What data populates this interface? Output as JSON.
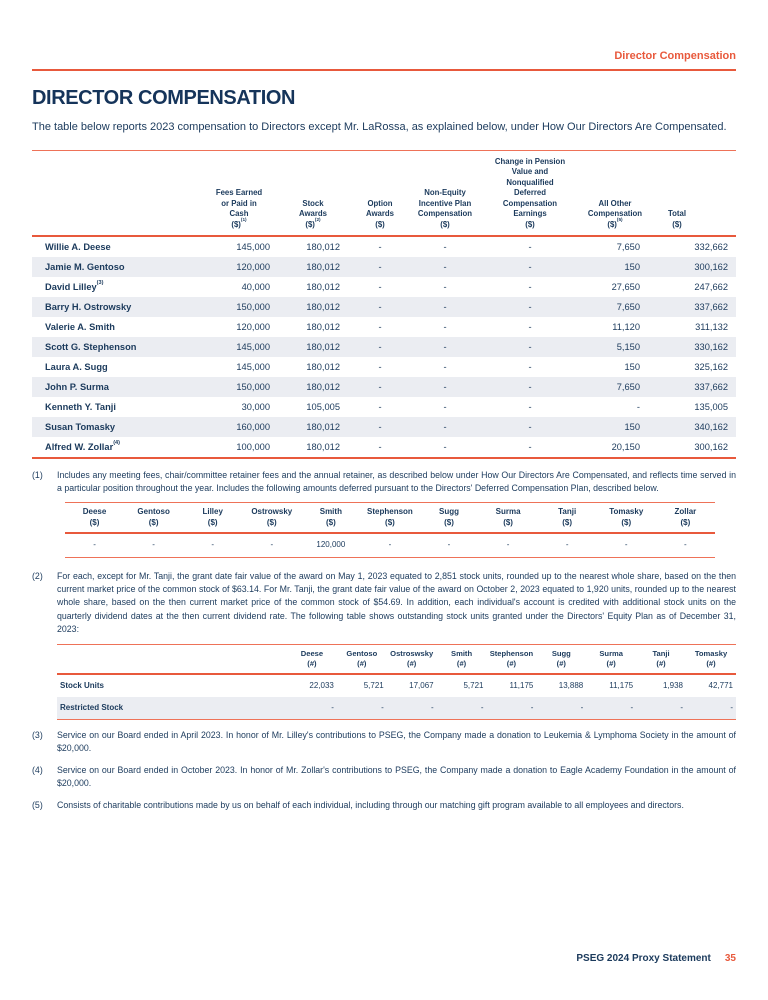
{
  "meta": {
    "header_label": "Director Compensation",
    "title": "DIRECTOR COMPENSATION",
    "intro": "The table below reports 2023 compensation to Directors except Mr. LaRossa, as explained below, under How Our Directors Are Compensated.",
    "footer_text": "PSEG 2024 Proxy Statement",
    "footer_page": "35"
  },
  "colors": {
    "accent_orange": "#e8593c",
    "navy": "#1b3a5c",
    "row_shade": "#ebedf2"
  },
  "comp_table": {
    "columns": [
      {
        "lines": [
          "Fees Earned",
          "or Paid in",
          "Cash"
        ],
        "unit": "($)",
        "sup": "(1)"
      },
      {
        "lines": [
          "Stock",
          "Awards"
        ],
        "unit": "($)",
        "sup": "(2)"
      },
      {
        "lines": [
          "Option",
          "Awards"
        ],
        "unit": "($)",
        "sup": ""
      },
      {
        "lines": [
          "Non-Equity",
          "Incentive Plan",
          "Compensation"
        ],
        "unit": "($)",
        "sup": ""
      },
      {
        "lines": [
          "Change in Pension",
          "Value and",
          "Nonqualified",
          "Deferred",
          "Compensation",
          "Earnings"
        ],
        "unit": "($)",
        "sup": ""
      },
      {
        "lines": [
          "All Other",
          "Compensation"
        ],
        "unit": "($)",
        "sup": "(5)"
      },
      {
        "lines": [
          "Total"
        ],
        "unit": "($)",
        "sup": ""
      }
    ],
    "rows": [
      {
        "name": "Willie A. Deese",
        "sup": "",
        "values": [
          "145,000",
          "180,012",
          "-",
          "-",
          "-",
          "7,650",
          "332,662"
        ]
      },
      {
        "name": "Jamie M. Gentoso",
        "sup": "",
        "values": [
          "120,000",
          "180,012",
          "-",
          "-",
          "-",
          "150",
          "300,162"
        ]
      },
      {
        "name": "David Lilley",
        "sup": "(3)",
        "values": [
          "40,000",
          "180,012",
          "-",
          "-",
          "-",
          "27,650",
          "247,662"
        ]
      },
      {
        "name": "Barry H. Ostrowsky",
        "sup": "",
        "values": [
          "150,000",
          "180,012",
          "-",
          "-",
          "-",
          "7,650",
          "337,662"
        ]
      },
      {
        "name": "Valerie A. Smith",
        "sup": "",
        "values": [
          "120,000",
          "180,012",
          "-",
          "-",
          "-",
          "11,120",
          "311,132"
        ]
      },
      {
        "name": "Scott G. Stephenson",
        "sup": "",
        "values": [
          "145,000",
          "180,012",
          "-",
          "-",
          "-",
          "5,150",
          "330,162"
        ]
      },
      {
        "name": "Laura A. Sugg",
        "sup": "",
        "values": [
          "145,000",
          "180,012",
          "-",
          "-",
          "-",
          "150",
          "325,162"
        ]
      },
      {
        "name": "John P. Surma",
        "sup": "",
        "values": [
          "150,000",
          "180,012",
          "-",
          "-",
          "-",
          "7,650",
          "337,662"
        ]
      },
      {
        "name": "Kenneth Y. Tanji",
        "sup": "",
        "values": [
          "30,000",
          "105,005",
          "-",
          "-",
          "-",
          "-",
          "135,005"
        ]
      },
      {
        "name": "Susan Tomasky",
        "sup": "",
        "values": [
          "160,000",
          "180,012",
          "-",
          "-",
          "-",
          "150",
          "340,162"
        ]
      },
      {
        "name": "Alfred W. Zollar",
        "sup": "(4)",
        "values": [
          "100,000",
          "180,012",
          "-",
          "-",
          "-",
          "20,150",
          "300,162"
        ]
      }
    ]
  },
  "footnote1": {
    "marker": "(1)",
    "text": "Includes any meeting fees, chair/committee retainer fees and the annual retainer, as described below under How Our Directors Are Compensated, and reflects time served in a particular position throughout the year. Includes the following amounts deferred pursuant to the Directors' Deferred Compensation Plan, described below.",
    "table": {
      "unit": "($)",
      "columns": [
        "Deese",
        "Gentoso",
        "Lilley",
        "Ostrowsky",
        "Smith",
        "Stephenson",
        "Sugg",
        "Surma",
        "Tanji",
        "Tomasky",
        "Zollar"
      ],
      "values": [
        "-",
        "-",
        "-",
        "-",
        "120,000",
        "-",
        "-",
        "-",
        "-",
        "-",
        "-"
      ]
    }
  },
  "footnote2": {
    "marker": "(2)",
    "text": "For each, except for Mr. Tanji, the grant date fair value of the award on May 1, 2023 equated to 2,851 stock units, rounded up to the nearest whole share, based on the then current market price of the common stock of $63.14. For Mr. Tanji, the grant date fair value of the award on October 2, 2023 equated to 1,920 units, rounded up to the nearest whole share, based on the then current market price of the common stock of $54.69. In addition, each individual's account is credited with additional stock units on the quarterly dividend dates at the then current dividend rate. The following table shows outstanding stock units granted under the Directors' Equity Plan as of December 31, 2023:",
    "table": {
      "unit": "(#)",
      "columns": [
        "Deese",
        "Gentoso",
        "Ostroswsky",
        "Smith",
        "Stephenson",
        "Sugg",
        "Surma",
        "Tanji",
        "Tomasky"
      ],
      "rows": [
        {
          "label": "Stock Units",
          "values": [
            "22,033",
            "5,721",
            "17,067",
            "5,721",
            "11,175",
            "13,888",
            "11,175",
            "1,938",
            "42,771"
          ]
        },
        {
          "label": "Restricted Stock",
          "values": [
            "-",
            "-",
            "-",
            "-",
            "-",
            "-",
            "-",
            "-",
            "-"
          ]
        }
      ]
    }
  },
  "footnote3": {
    "marker": "(3)",
    "text": "Service on our Board ended in April 2023. In honor of Mr. Lilley's contributions to PSEG, the Company made a donation to Leukemia & Lymphoma Society in the amount of $20,000."
  },
  "footnote4": {
    "marker": "(4)",
    "text": "Service on our Board ended in October 2023. In honor of Mr. Zollar's contributions to PSEG, the Company made a donation to Eagle Academy Foundation in the amount of $20,000."
  },
  "footnote5": {
    "marker": "(5)",
    "text": "Consists of charitable contributions made by us on behalf of each individual, including through our matching gift program available to all employees and directors."
  }
}
